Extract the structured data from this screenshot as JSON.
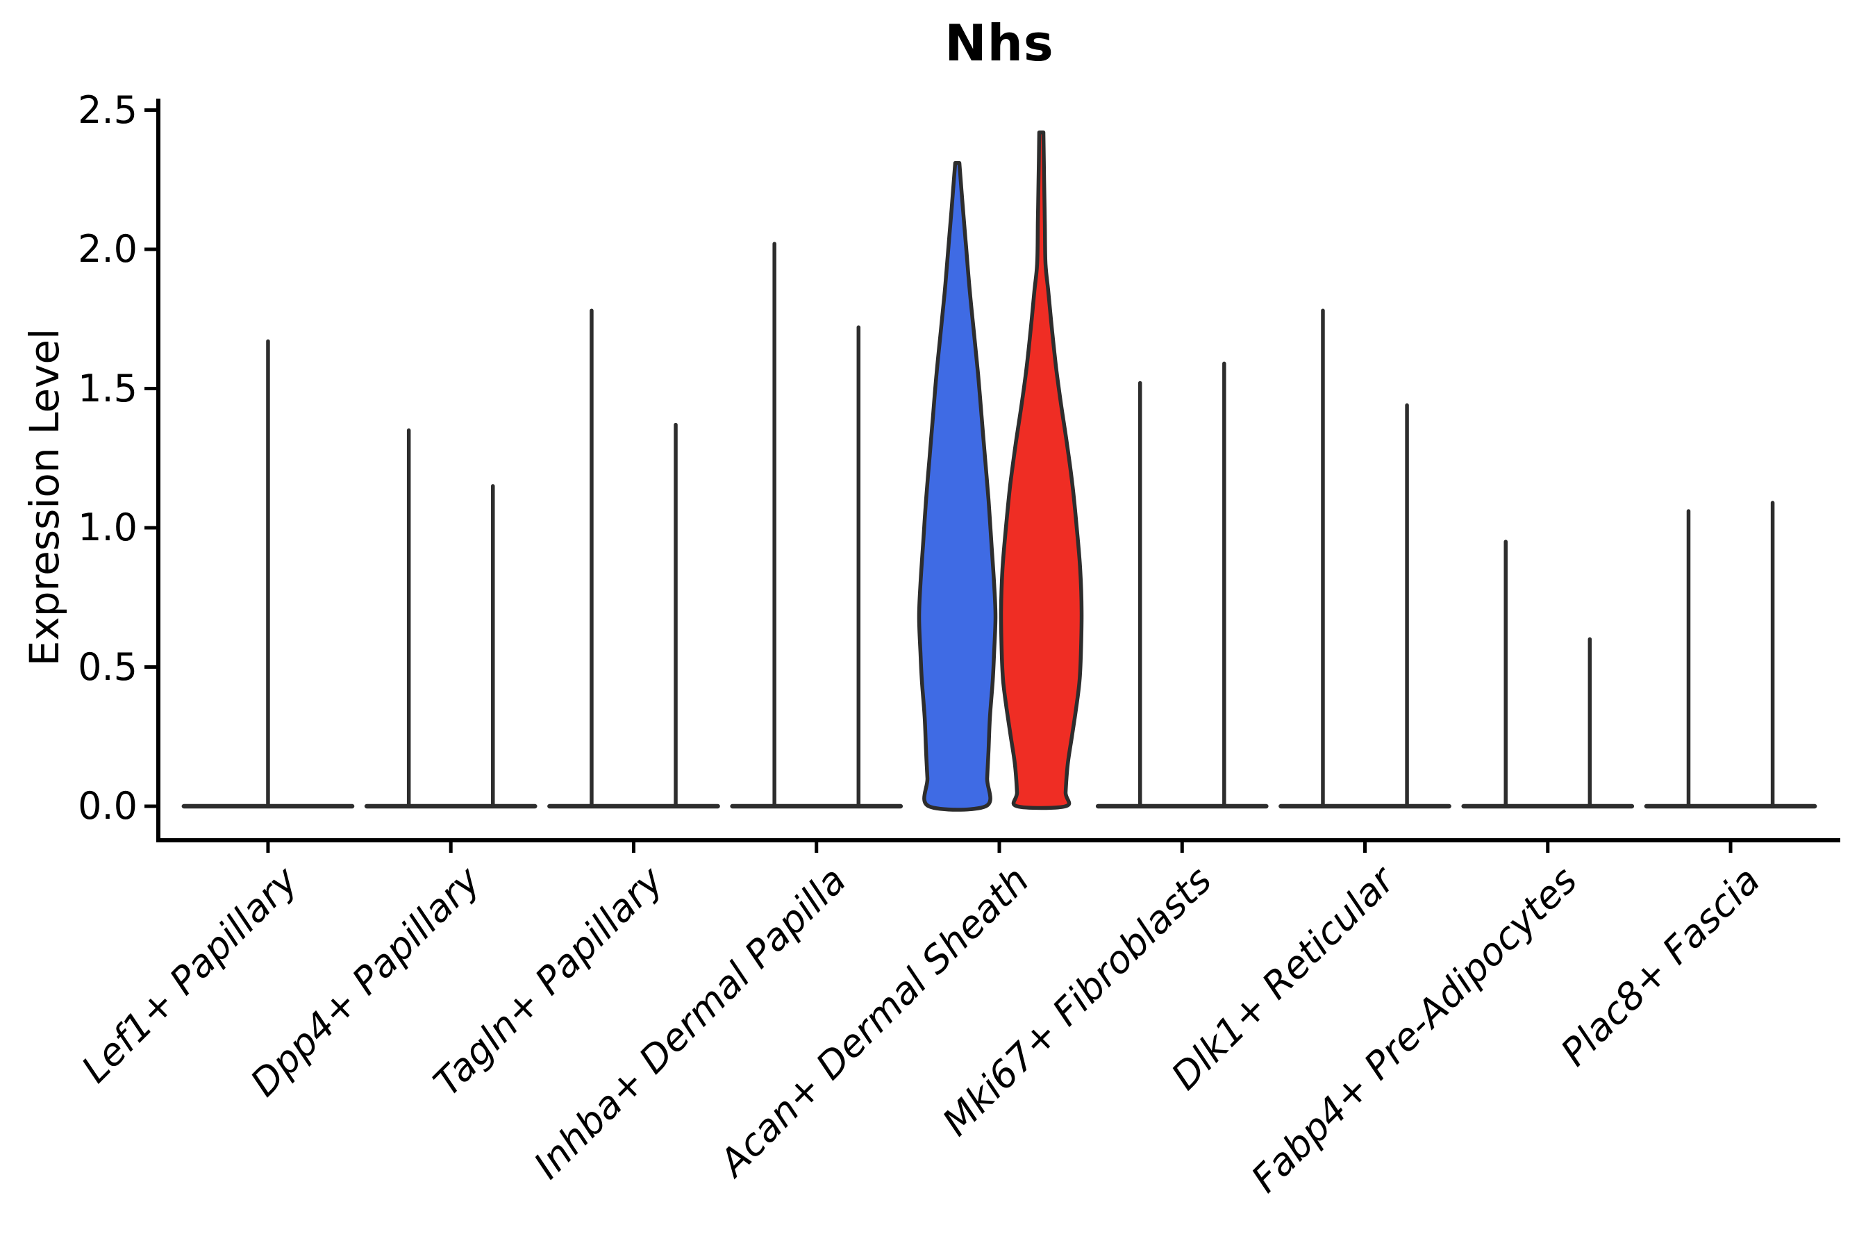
{
  "title": "Nhs",
  "y_axis": {
    "label": "Expression Level",
    "tick_labels": [
      "0.0",
      "0.5",
      "1.0",
      "1.5",
      "2.0",
      "2.5"
    ]
  },
  "x_axis": {
    "categories": [
      "Lef1+ Papillary",
      "Dpp4+ Papillary",
      "Tagln+ Papillary",
      "Inhba+ Dermal Papilla",
      "Acan+ Dermal Sheath",
      "Mki67+ Fibroblasts",
      "Dlk1+ Reticular",
      "Fabp4+ Pre-Adipocytes",
      "Plac8+ Fascia"
    ]
  },
  "colors": {
    "blue": "#3F6BE4",
    "red": "#EF2D24",
    "violin_stroke": "#2d2d2d",
    "axis": "#000000",
    "background": "#ffffff"
  },
  "chart_data": {
    "type": "violin",
    "title": "Nhs",
    "xlabel": "",
    "ylabel": "Expression Level",
    "ylim": [
      -0.12,
      2.54
    ],
    "yticks": [
      0.0,
      0.5,
      1.0,
      1.5,
      2.0,
      2.5
    ],
    "legend": "none",
    "grid": false,
    "categories": [
      "Lef1+ Papillary",
      "Dpp4+ Papillary",
      "Tagln+ Papillary",
      "Inhba+ Dermal Papilla",
      "Acan+ Dermal Sheath",
      "Mki67+ Fibroblasts",
      "Dlk1+ Reticular",
      "Fabp4+ Pre-Adipocytes",
      "Plac8+ Fascia"
    ],
    "description": "Split violin plot; two violins per category (left=blue group, right=red group). Most categories collapse to a flat base at 0 with a thin spike to the max expression value; Acan+ Dermal Sheath shows full blue and red violins.",
    "violins": [
      {
        "category": "Lef1+ Papillary",
        "layout": "single",
        "spikes": [
          {
            "pos": "center",
            "max": 1.67
          }
        ]
      },
      {
        "category": "Dpp4+ Papillary",
        "layout": "split",
        "spikes": [
          {
            "pos": "left",
            "max": 1.35
          },
          {
            "pos": "right",
            "max": 1.15
          }
        ]
      },
      {
        "category": "Tagln+ Papillary",
        "layout": "split",
        "spikes": [
          {
            "pos": "left",
            "max": 1.78
          },
          {
            "pos": "right",
            "max": 1.37
          }
        ]
      },
      {
        "category": "Inhba+ Dermal Papilla",
        "layout": "split",
        "spikes": [
          {
            "pos": "left",
            "max": 2.02
          },
          {
            "pos": "right",
            "max": 1.72
          }
        ]
      },
      {
        "category": "Acan+ Dermal Sheath",
        "layout": "split",
        "full_violins": [
          {
            "pos": "left",
            "color": "blue",
            "max": 2.31,
            "profile": [
              [
                2.31,
                3
              ],
              [
                2.15,
                8
              ],
              [
                2.0,
                13
              ],
              [
                1.85,
                18
              ],
              [
                1.7,
                24
              ],
              [
                1.55,
                30
              ],
              [
                1.4,
                35
              ],
              [
                1.25,
                40
              ],
              [
                1.1,
                45
              ],
              [
                0.95,
                49
              ],
              [
                0.8,
                53
              ],
              [
                0.68,
                55
              ],
              [
                0.55,
                53
              ],
              [
                0.45,
                51
              ],
              [
                0.32,
                47
              ],
              [
                0.2,
                45
              ],
              [
                0.1,
                43
              ],
              [
                0.0,
                41
              ]
            ]
          },
          {
            "pos": "right",
            "color": "red",
            "max": 2.42,
            "profile": [
              [
                2.42,
                3
              ],
              [
                2.25,
                4
              ],
              [
                2.1,
                5
              ],
              [
                1.95,
                6
              ],
              [
                1.85,
                10
              ],
              [
                1.72,
                15
              ],
              [
                1.58,
                21
              ],
              [
                1.45,
                28
              ],
              [
                1.3,
                37
              ],
              [
                1.15,
                45
              ],
              [
                1.0,
                51
              ],
              [
                0.85,
                56
              ],
              [
                0.7,
                58
              ],
              [
                0.55,
                57
              ],
              [
                0.45,
                55
              ],
              [
                0.35,
                50
              ],
              [
                0.25,
                44
              ],
              [
                0.15,
                38
              ],
              [
                0.05,
                35
              ],
              [
                0.0,
                35
              ]
            ]
          }
        ]
      },
      {
        "category": "Mki67+ Fibroblasts",
        "layout": "split",
        "spikes": [
          {
            "pos": "left",
            "max": 1.52
          },
          {
            "pos": "right",
            "max": 1.59
          }
        ]
      },
      {
        "category": "Dlk1+ Reticular",
        "layout": "split",
        "spikes": [
          {
            "pos": "left",
            "max": 1.78
          },
          {
            "pos": "right",
            "max": 1.44
          }
        ]
      },
      {
        "category": "Fabp4+ Pre-Adipocytes",
        "layout": "split",
        "spikes": [
          {
            "pos": "left",
            "max": 0.95
          },
          {
            "pos": "right",
            "max": 0.6
          }
        ]
      },
      {
        "category": "Plac8+ Fascia",
        "layout": "split",
        "spikes": [
          {
            "pos": "left",
            "max": 1.06
          },
          {
            "pos": "right",
            "max": 1.09
          }
        ]
      }
    ]
  }
}
